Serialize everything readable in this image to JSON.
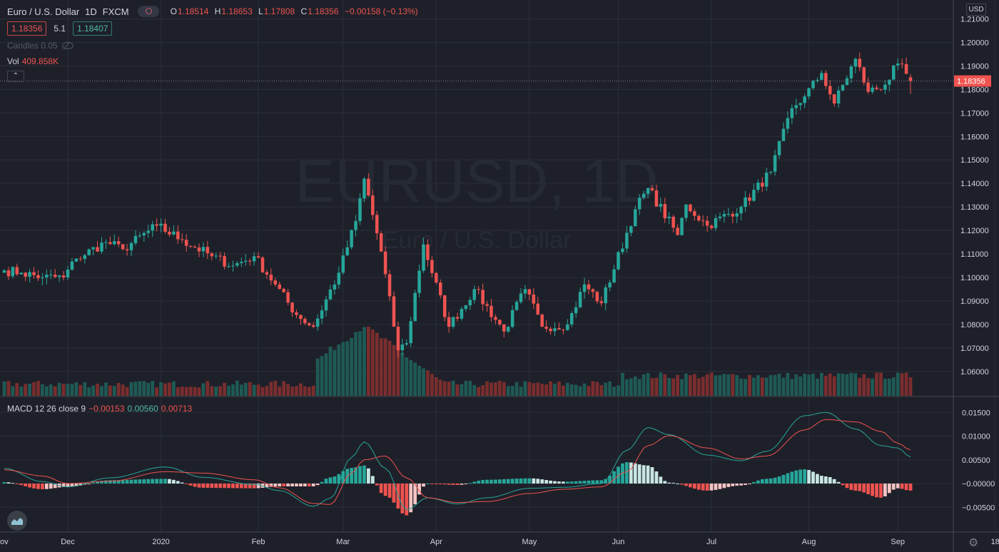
{
  "header": {
    "symbol": "Euro / U.S. Dollar",
    "interval": "1D",
    "exchange": "FXCM",
    "ohlc": {
      "o_label": "O",
      "o": "1.18514",
      "h_label": "H",
      "h": "1.18653",
      "l_label": "L",
      "l": "1.17808",
      "c_label": "C",
      "c": "1.18356",
      "change": "−0.00158 (−0.13%)"
    }
  },
  "quote": {
    "sell": "1.18356",
    "spread": "5.1",
    "buy": "1.18407"
  },
  "indicators": {
    "candles_label": "Candles 0.05",
    "volume_label": "Vol",
    "volume_value": "409.858K",
    "collapse_icon": "⌃",
    "macd_label": "MACD 12 26 close 9",
    "macd_value": "−0.00153",
    "signal_value": "0.00560",
    "hist_value": "0.00713"
  },
  "watermark": {
    "line1": "EURUSD, 1D",
    "line2": "Euro / U.S. Dollar"
  },
  "axis": {
    "currency": "USD",
    "price_labels": [
      "1.21000",
      "1.20000",
      "1.19000",
      "1.18000",
      "1.17000",
      "1.16000",
      "1.15000",
      "1.14000",
      "1.13000",
      "1.12000",
      "1.11000",
      "1.10000",
      "1.09000",
      "1.08000",
      "1.07000",
      "1.06000"
    ],
    "last_price_label": "1.18356",
    "macd_labels": [
      "0.01500",
      "0.01000",
      "0.00500",
      "−0.00000",
      "−0.00500"
    ],
    "time_labels": [
      "ov",
      "Dec",
      "2020",
      "Feb",
      "Mar",
      "Apr",
      "May",
      "Jun",
      "Jul",
      "Aug",
      "Sep",
      "18"
    ]
  },
  "colors": {
    "up": "#26a69a",
    "down": "#ef5350",
    "background": "#1e2029",
    "grid": "#2a2e39",
    "macd_line": "#26a69a",
    "signal_line": "#ef5350"
  },
  "chart_data": {
    "type": "candlestick",
    "symbol": "EURUSD",
    "interval": "1D",
    "ylim": [
      1.055,
      1.215
    ],
    "macd_ylim": [
      -0.0065,
      0.017
    ],
    "anchors": [
      {
        "date": "2019-11-11",
        "close": 1.103
      },
      {
        "date": "2019-11-15",
        "close": 1.102
      },
      {
        "date": "2019-11-22",
        "close": 1.1
      },
      {
        "date": "2019-11-29",
        "close": 1.1
      },
      {
        "date": "2019-12-04",
        "close": 1.108
      },
      {
        "date": "2019-12-13",
        "close": 1.115
      },
      {
        "date": "2019-12-19",
        "close": 1.112
      },
      {
        "date": "2019-12-31",
        "close": 1.122
      },
      {
        "date": "2020-01-08",
        "close": 1.116
      },
      {
        "date": "2020-01-17",
        "close": 1.109
      },
      {
        "date": "2020-01-24",
        "close": 1.105
      },
      {
        "date": "2020-01-31",
        "close": 1.109
      },
      {
        "date": "2020-02-07",
        "close": 1.097
      },
      {
        "date": "2020-02-14",
        "close": 1.084
      },
      {
        "date": "2020-02-20",
        "close": 1.079
      },
      {
        "date": "2020-02-28",
        "close": 1.102
      },
      {
        "date": "2020-03-05",
        "close": 1.124
      },
      {
        "date": "2020-03-09",
        "close": 1.142
      },
      {
        "date": "2020-03-13",
        "close": 1.111
      },
      {
        "date": "2020-03-19",
        "close": 1.069
      },
      {
        "date": "2020-03-23",
        "close": 1.072
      },
      {
        "date": "2020-03-27",
        "close": 1.114
      },
      {
        "date": "2020-04-06",
        "close": 1.079
      },
      {
        "date": "2020-04-14",
        "close": 1.095
      },
      {
        "date": "2020-04-23",
        "close": 1.077
      },
      {
        "date": "2020-04-30",
        "close": 1.095
      },
      {
        "date": "2020-05-06",
        "close": 1.079
      },
      {
        "date": "2020-05-14",
        "close": 1.08
      },
      {
        "date": "2020-05-20",
        "close": 1.097
      },
      {
        "date": "2020-05-26",
        "close": 1.089
      },
      {
        "date": "2020-06-05",
        "close": 1.129
      },
      {
        "date": "2020-06-10",
        "close": 1.138
      },
      {
        "date": "2020-06-19",
        "close": 1.118
      },
      {
        "date": "2020-06-23",
        "close": 1.131
      },
      {
        "date": "2020-06-30",
        "close": 1.122
      },
      {
        "date": "2020-07-10",
        "close": 1.13
      },
      {
        "date": "2020-07-21",
        "close": 1.145
      },
      {
        "date": "2020-07-28",
        "close": 1.172
      },
      {
        "date": "2020-07-31",
        "close": 1.177
      },
      {
        "date": "2020-08-06",
        "close": 1.187
      },
      {
        "date": "2020-08-11",
        "close": 1.174
      },
      {
        "date": "2020-08-18",
        "close": 1.193
      },
      {
        "date": "2020-08-21",
        "close": 1.179
      },
      {
        "date": "2020-08-27",
        "close": 1.182
      },
      {
        "date": "2020-09-01",
        "close": 1.191
      },
      {
        "date": "2020-09-04",
        "close": 1.18356
      }
    ],
    "last_candle": {
      "date": "2020-09-04",
      "open": 1.18514,
      "high": 1.18653,
      "low": 1.17808,
      "close": 1.18356,
      "volume": 409858
    },
    "volume_peak_date": "2020-03-09",
    "macd_points": [
      {
        "date": "2019-11-11",
        "macd": 0.0032,
        "signal": 0.0029
      },
      {
        "date": "2019-11-22",
        "macd": 0.0004,
        "signal": 0.0016
      },
      {
        "date": "2019-12-02",
        "macd": -0.0007,
        "signal": 0.0
      },
      {
        "date": "2019-12-16",
        "macd": 0.0012,
        "signal": 0.0005
      },
      {
        "date": "2020-01-02",
        "macd": 0.0035,
        "signal": 0.0025
      },
      {
        "date": "2020-01-15",
        "macd": 0.0013,
        "signal": 0.0022
      },
      {
        "date": "2020-01-31",
        "macd": -0.0002,
        "signal": 0.0008
      },
      {
        "date": "2020-02-10",
        "macd": -0.0015,
        "signal": -0.0009
      },
      {
        "date": "2020-02-20",
        "macd": -0.0048,
        "signal": -0.0042
      },
      {
        "date": "2020-02-26",
        "macd": -0.0031,
        "signal": -0.0044
      },
      {
        "date": "2020-03-04",
        "macd": 0.0055,
        "signal": 0.0022
      },
      {
        "date": "2020-03-09",
        "macd": 0.0088,
        "signal": 0.005
      },
      {
        "date": "2020-03-16",
        "macd": 0.0032,
        "signal": 0.0058
      },
      {
        "date": "2020-03-23",
        "macd": -0.0055,
        "signal": 0.0012
      },
      {
        "date": "2020-03-30",
        "macd": -0.003,
        "signal": -0.003
      },
      {
        "date": "2020-04-08",
        "macd": -0.0043,
        "signal": -0.004
      },
      {
        "date": "2020-04-17",
        "macd": -0.003,
        "signal": -0.0038
      },
      {
        "date": "2020-05-01",
        "macd": -0.001,
        "signal": -0.0021
      },
      {
        "date": "2020-05-13",
        "macd": -0.0008,
        "signal": -0.0012
      },
      {
        "date": "2020-05-26",
        "macd": 0.0,
        "signal": -0.0007
      },
      {
        "date": "2020-06-03",
        "macd": 0.007,
        "signal": 0.0025
      },
      {
        "date": "2020-06-10",
        "macd": 0.0118,
        "signal": 0.008
      },
      {
        "date": "2020-06-17",
        "macd": 0.0103,
        "signal": 0.0101
      },
      {
        "date": "2020-06-30",
        "macd": 0.006,
        "signal": 0.0075
      },
      {
        "date": "2020-07-10",
        "macd": 0.0048,
        "signal": 0.0052
      },
      {
        "date": "2020-07-20",
        "macd": 0.0068,
        "signal": 0.0058
      },
      {
        "date": "2020-07-31",
        "macd": 0.0143,
        "signal": 0.0113
      },
      {
        "date": "2020-08-07",
        "macd": 0.015,
        "signal": 0.0135
      },
      {
        "date": "2020-08-18",
        "macd": 0.0115,
        "signal": 0.013
      },
      {
        "date": "2020-08-26",
        "macd": 0.008,
        "signal": 0.011
      },
      {
        "date": "2020-09-01",
        "macd": 0.0075,
        "signal": 0.0085
      },
      {
        "date": "2020-09-04",
        "macd": 0.0056,
        "signal": 0.0071
      }
    ]
  }
}
